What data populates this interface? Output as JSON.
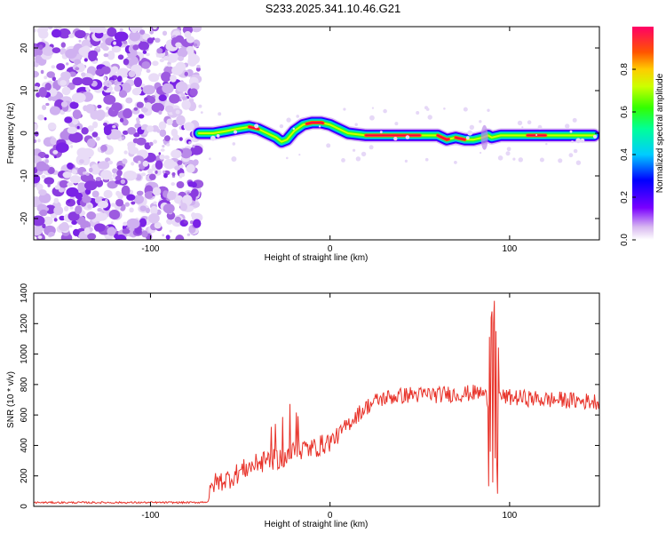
{
  "title": "S233.2025.341.10.46.G21",
  "colors": {
    "line": "#e8332a",
    "frame": "#000000"
  },
  "chart_data": [
    {
      "type": "heatmap",
      "xlabel": "Height of straight line (km)",
      "ylabel": "Frequency (Hz)",
      "xlim": [
        -165,
        150
      ],
      "ylim": [
        -25,
        25
      ],
      "xticks": [
        -100,
        0,
        100
      ],
      "yticks": [
        -20,
        -10,
        0,
        10,
        20
      ],
      "noise_region_x": [
        -165,
        -73
      ],
      "ridge": {
        "x": [
          -73,
          -65,
          -58,
          -52,
          -45,
          -40,
          -35,
          -30,
          -27,
          -24,
          -20,
          -15,
          -10,
          -5,
          0,
          5,
          10,
          20,
          40,
          60,
          65,
          70,
          75,
          80,
          85,
          88,
          90,
          95,
          100,
          110,
          120,
          130,
          140,
          147
        ],
        "y": [
          0,
          0,
          0.5,
          1,
          1.5,
          1,
          0,
          -1,
          -2,
          -1.5,
          0.5,
          2,
          2.5,
          2.5,
          2,
          1,
          0,
          -0.5,
          -0.5,
          -0.5,
          -1.5,
          -1,
          -1.5,
          -1.5,
          -1,
          -0.5,
          -1,
          -0.5,
          -0.5,
          -0.5,
          -0.5,
          -0.5,
          -0.5,
          -0.5
        ]
      },
      "colorbar": {
        "label": "Normalized spectral amplitude",
        "range": [
          0,
          1
        ],
        "ticks": [
          "0.0",
          "0.2",
          "0.4",
          "0.6",
          "0.8"
        ],
        "tick_values": [
          0,
          0.2,
          0.4,
          0.6,
          0.8
        ]
      }
    },
    {
      "type": "line",
      "xlabel": "Height of straight line (km)",
      "ylabel": "SNR (10 * v/v)",
      "xlim": [
        -165,
        150
      ],
      "ylim": [
        0,
        1400
      ],
      "xticks": [
        -100,
        0,
        100
      ],
      "yticks": [
        0,
        200,
        400,
        600,
        800,
        1000,
        1200,
        1400
      ],
      "series": [
        {
          "name": "SNR",
          "x": [
            -165,
            -150,
            -130,
            -110,
            -90,
            -75,
            -68,
            -65,
            -60,
            -55,
            -50,
            -45,
            -40,
            -35,
            -30,
            -25,
            -20,
            -15,
            -10,
            -5,
            0,
            5,
            10,
            15,
            20,
            25,
            30,
            35,
            40,
            45,
            50,
            55,
            60,
            65,
            70,
            75,
            80,
            85,
            88,
            90,
            92,
            95,
            100,
            110,
            120,
            130,
            140,
            150
          ],
          "values": [
            25,
            25,
            25,
            25,
            25,
            25,
            30,
            150,
            170,
            190,
            230,
            260,
            280,
            300,
            310,
            320,
            360,
            380,
            380,
            400,
            430,
            470,
            540,
            600,
            650,
            690,
            710,
            720,
            725,
            735,
            730,
            740,
            730,
            740,
            735,
            740,
            745,
            745,
            700,
            720,
            730,
            720,
            715,
            710,
            700,
            700,
            690,
            690
          ]
        }
      ]
    }
  ]
}
